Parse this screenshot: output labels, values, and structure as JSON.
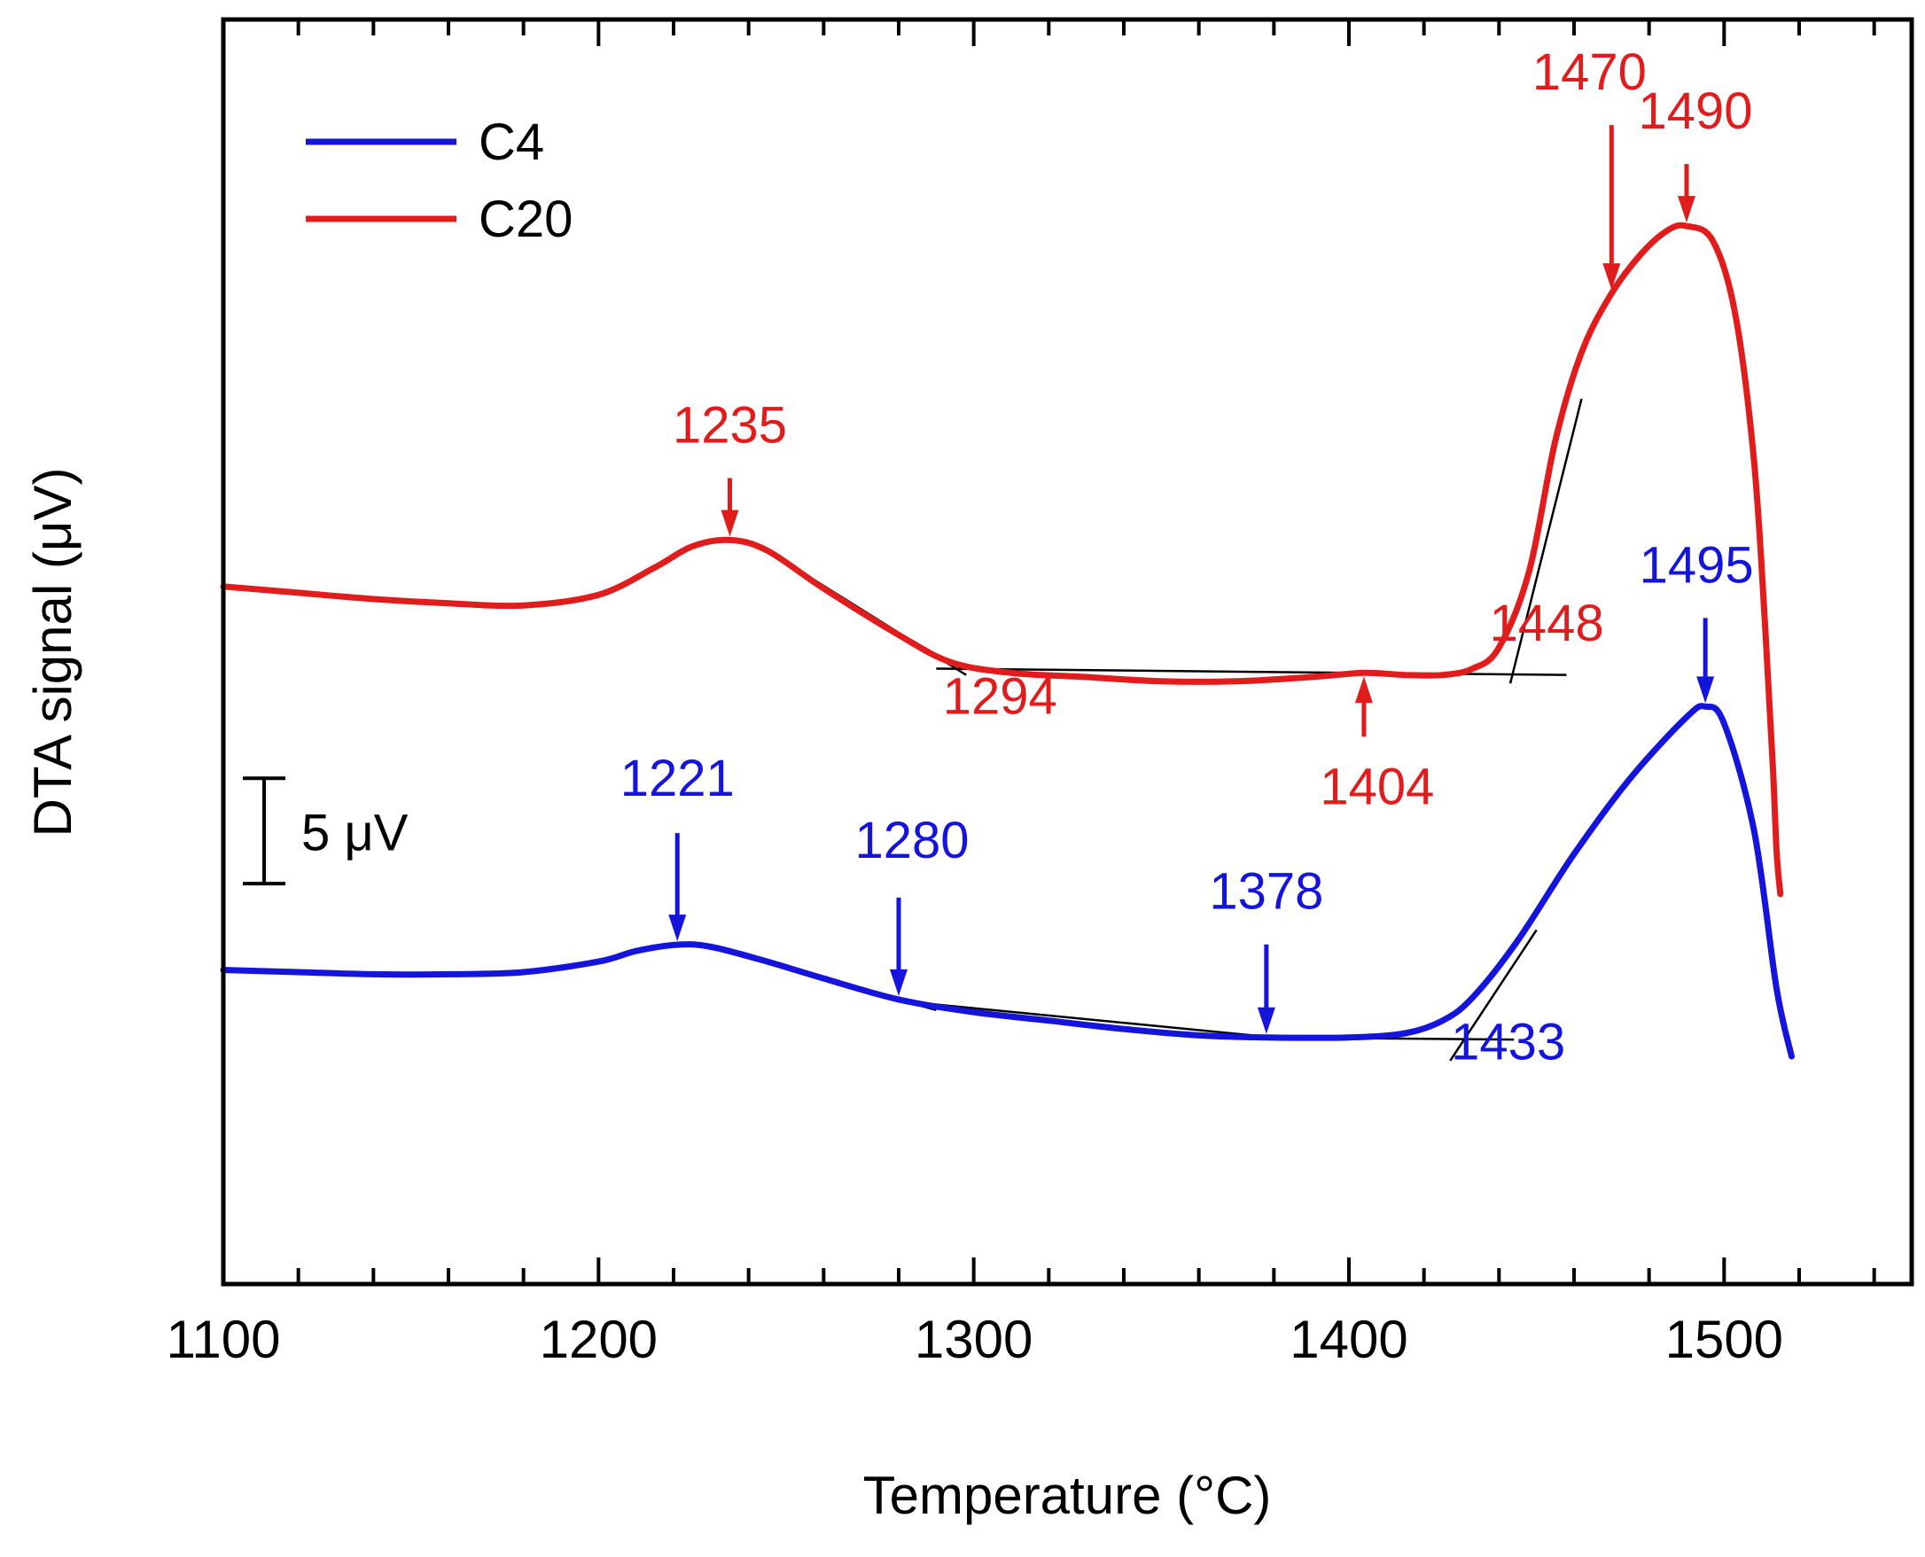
{
  "chart_data": {
    "type": "line",
    "xlabel": "Temperature (°C)",
    "ylabel": "DTA signal (μV)",
    "xlim": [
      1100,
      1550
    ],
    "ylim": [
      -8,
      52
    ],
    "x_major_ticks": [
      1100,
      1200,
      1300,
      1400,
      1500
    ],
    "x_minor_step": 20,
    "tick_labels": [
      "1100",
      "1200",
      "1300",
      "1400",
      "1500"
    ],
    "legend": {
      "position": "top-left"
    },
    "scale_bar": {
      "label": "5 μV",
      "value": 5,
      "y_from": 11,
      "y_to": 16
    },
    "series": [
      {
        "name": "C4",
        "color": "#1414dc",
        "x": [
          1100,
          1120,
          1140,
          1160,
          1180,
          1200,
          1210,
          1221,
          1230,
          1245,
          1260,
          1280,
          1300,
          1320,
          1340,
          1360,
          1378,
          1400,
          1415,
          1425,
          1433,
          1445,
          1460,
          1475,
          1490,
          1495,
          1500,
          1508,
          1514,
          1518
        ],
        "y": [
          6.9,
          6.8,
          6.7,
          6.7,
          6.8,
          7.3,
          7.8,
          8.1,
          8.0,
          7.3,
          6.5,
          5.5,
          4.9,
          4.5,
          4.1,
          3.8,
          3.7,
          3.7,
          3.9,
          4.5,
          5.6,
          8.3,
          12.4,
          16.0,
          18.9,
          19.4,
          18.6,
          13.5,
          6.0,
          2.8
        ]
      },
      {
        "name": "C20",
        "color": "#e01c1c",
        "x": [
          1100,
          1120,
          1140,
          1160,
          1180,
          1200,
          1215,
          1225,
          1235,
          1245,
          1260,
          1280,
          1294,
          1310,
          1330,
          1350,
          1370,
          1390,
          1404,
          1415,
          1425,
          1433,
          1440,
          1448,
          1455,
          1462,
          1470,
          1478,
          1485,
          1490,
          1497,
          1503,
          1508,
          1511,
          1513,
          1514,
          1515
        ],
        "y": [
          25.1,
          24.8,
          24.5,
          24.3,
          24.2,
          24.7,
          26.0,
          27.0,
          27.3,
          26.8,
          25.0,
          22.8,
          21.5,
          21.0,
          20.8,
          20.6,
          20.6,
          20.8,
          21.0,
          20.9,
          20.9,
          21.2,
          22.2,
          25.8,
          32.0,
          36.2,
          39.0,
          40.9,
          42.0,
          42.2,
          41.5,
          38.0,
          31.0,
          23.0,
          16.5,
          12.5,
          10.5
        ]
      }
    ],
    "annotations": [
      {
        "text": "1235",
        "series": "C20",
        "x": 1235,
        "arrow": true
      },
      {
        "text": "1294",
        "series": "C20",
        "x": 1294,
        "arrow": false
      },
      {
        "text": "1404",
        "series": "C20",
        "x": 1404,
        "arrow": true
      },
      {
        "text": "1448",
        "series": "C20",
        "x": 1448,
        "arrow": false
      },
      {
        "text": "1470",
        "series": "C20",
        "x": 1470,
        "arrow": true
      },
      {
        "text": "1490",
        "series": "C20",
        "x": 1490,
        "arrow": true
      },
      {
        "text": "1221",
        "series": "C4",
        "x": 1221,
        "arrow": true
      },
      {
        "text": "1280",
        "series": "C4",
        "x": 1280,
        "arrow": true
      },
      {
        "text": "1378",
        "series": "C4",
        "x": 1378,
        "arrow": true
      },
      {
        "text": "1433",
        "series": "C4",
        "x": 1433,
        "arrow": false
      },
      {
        "text": "1495",
        "series": "C4",
        "x": 1495,
        "arrow": true
      }
    ]
  }
}
